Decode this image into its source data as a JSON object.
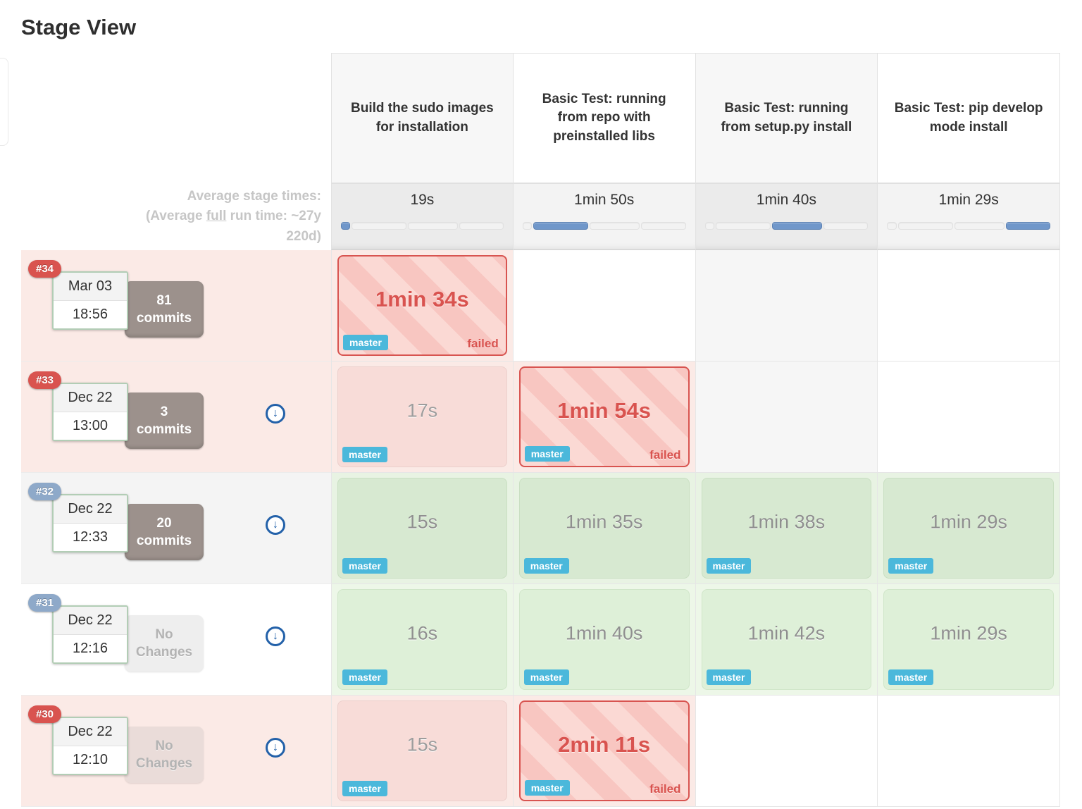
{
  "page": {
    "title": "Stage View"
  },
  "colors": {
    "failed_accent": "#d9534f",
    "branch_badge": "#4bb8db",
    "bar_fill": "#7097ca",
    "pill_red": "#d9534f",
    "pill_blue": "#8ea9c9",
    "success_cell": "#d7e9d1",
    "failed_cell_stripe_light": "#fbd9d4",
    "failed_cell_stripe_dark": "#f8c6c1"
  },
  "table": {
    "stages": [
      {
        "name": "Build the sudo images for installation",
        "avg_time": "19s"
      },
      {
        "name": "Basic Test: running from repo with preinstalled libs",
        "avg_time": "1min 50s"
      },
      {
        "name": "Basic Test: running from setup.py install",
        "avg_time": "1min 40s"
      },
      {
        "name": "Basic Test: pip develop mode install",
        "avg_time": "1min 29s"
      }
    ],
    "bar_pcts": [
      "5.97%",
      "34.59%",
      "31.45%",
      "27.99%"
    ],
    "average_header": {
      "line1": "Average stage times:",
      "line2_prefix": "(Average ",
      "line2_underlined": "full",
      "line2_suffix": " run time: ~27y",
      "line3": "220d)"
    },
    "builds": [
      {
        "number": "#34",
        "date": "Mar 03",
        "time": "18:56",
        "changes_line1": "81",
        "changes_line2": "commits",
        "cells": [
          {
            "duration": "1min 34s",
            "branch": "master",
            "status_label": "failed"
          },
          {},
          {},
          {}
        ]
      },
      {
        "number": "#33",
        "date": "Dec 22",
        "time": "13:00",
        "changes_line1": "3",
        "changes_line2": "commits",
        "cells": [
          {
            "duration": "17s",
            "branch": "master"
          },
          {
            "duration": "1min 54s",
            "branch": "master",
            "status_label": "failed"
          },
          {},
          {}
        ]
      },
      {
        "number": "#32",
        "date": "Dec 22",
        "time": "12:33",
        "changes_line1": "20",
        "changes_line2": "commits",
        "cells": [
          {
            "duration": "15s",
            "branch": "master"
          },
          {
            "duration": "1min 35s",
            "branch": "master"
          },
          {
            "duration": "1min 38s",
            "branch": "master"
          },
          {
            "duration": "1min 29s",
            "branch": "master"
          }
        ]
      },
      {
        "number": "#31",
        "date": "Dec 22",
        "time": "12:16",
        "changes_line1": "No",
        "changes_line2": "Changes",
        "cells": [
          {
            "duration": "16s",
            "branch": "master"
          },
          {
            "duration": "1min 40s",
            "branch": "master"
          },
          {
            "duration": "1min 42s",
            "branch": "master"
          },
          {
            "duration": "1min 29s",
            "branch": "master"
          }
        ]
      },
      {
        "number": "#30",
        "date": "Dec 22",
        "time": "12:10",
        "changes_line1": "No",
        "changes_line2": "Changes",
        "cells": [
          {
            "duration": "15s",
            "branch": "master"
          },
          {
            "duration": "2min 11s",
            "branch": "master",
            "status_label": "failed"
          },
          {},
          {}
        ]
      }
    ],
    "download_icon_glyph": "↓"
  }
}
